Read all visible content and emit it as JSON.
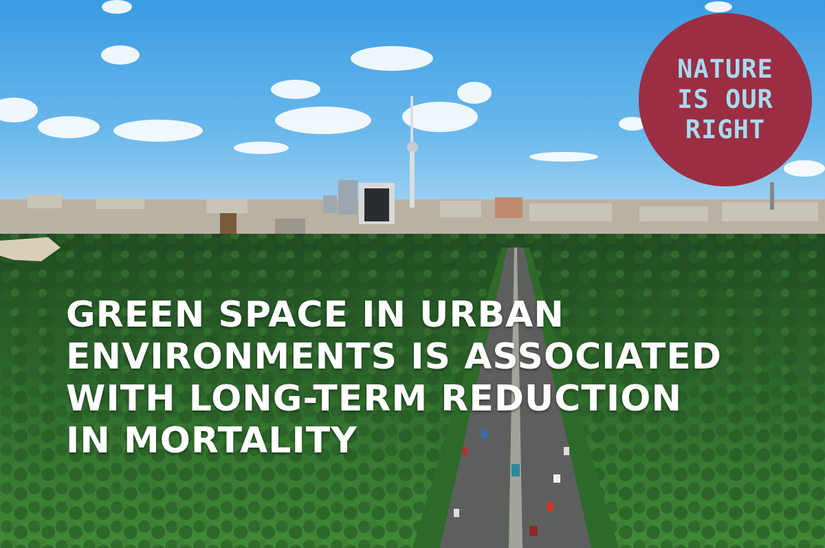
{
  "image": {
    "description_icon": "city-skyline-park-photo"
  },
  "badge": {
    "lines": [
      "NATURE",
      "IS OUR",
      "RIGHT"
    ],
    "background_color": "#9b2e43",
    "text_color": "#a9d9ee"
  },
  "headline": {
    "lines": [
      "GREEN SPACE IN URBAN",
      "ENVIRONMENTS IS ASSOCIATED",
      "WITH LONG-TERM REDUCTION",
      "IN MORTALITY"
    ],
    "text_color": "#ffffff"
  }
}
